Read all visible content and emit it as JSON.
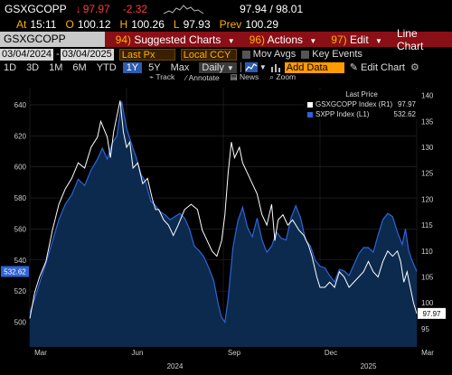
{
  "quote": {
    "ticker": "GSXGCOPP",
    "arrow": "↓",
    "last": "97.97",
    "change": "-2.32",
    "bid_ask": "97.94 / 98.01",
    "time_label": "At",
    "time": "15:11",
    "open_label": "O",
    "open": "100.12",
    "high_label": "H",
    "high": "100.26",
    "low_label": "L",
    "low": "97.93",
    "prev_label": "Prev",
    "prev": "100.29"
  },
  "menu": {
    "security": "GSXGCOPP Index",
    "items": [
      {
        "num": "94)",
        "label": "Suggested Charts"
      },
      {
        "num": "96)",
        "label": "Actions"
      },
      {
        "num": "97)",
        "label": "Edit"
      }
    ],
    "chart_type": "Line Chart"
  },
  "controls": {
    "start_date": "03/04/2024",
    "end_date": "03/04/2025",
    "price_field": "Last Px",
    "currency": "Local CCY",
    "mov_avgs": "Mov Avgs",
    "key_events": "Key Events"
  },
  "periods": [
    "1D",
    "3D",
    "1M",
    "6M",
    "YTD",
    "1Y",
    "5Y",
    "Max"
  ],
  "active_period": "1Y",
  "frequency": "Daily",
  "add_data": "Add Data",
  "edit_chart": "Edit Chart",
  "tools": {
    "track": "Track",
    "annotate": "Annotate",
    "news": "News",
    "zoom": "Zoom"
  },
  "colors": {
    "background": "#000000",
    "menu_bar": "#8a0f16",
    "accent_orange": "#ffb000",
    "series_white": "#ffffff",
    "series_blue": "#2f63d6",
    "fill_blue": "#0c2a4e",
    "negative": "#ff3b3b"
  },
  "chart_data": {
    "type": "line",
    "legend_title": "Last Price",
    "legend_position": "top-right",
    "grid": true,
    "x_tick_labels": [
      "Mar",
      "Jun",
      "Sep",
      "Dec",
      "Mar"
    ],
    "x_tick_positions": [
      0.0,
      3.0,
      6.0,
      9.0,
      12.0
    ],
    "year_labels": [
      "2024",
      "2025"
    ],
    "year_positions": [
      4.5,
      10.5
    ],
    "left_axis": {
      "ticks": [
        500,
        520,
        540,
        560,
        580,
        600,
        620,
        640
      ],
      "ylim": [
        484,
        651
      ]
    },
    "right_axis": {
      "ticks": [
        95,
        100,
        105,
        110,
        115,
        120,
        125,
        130,
        135,
        140
      ],
      "ylim": [
        91.5,
        141.5
      ]
    },
    "series": [
      {
        "name": "GSXGCOPP Index (R1)",
        "last_label": "97.97",
        "axis": "right",
        "values": [
          [
            0,
            97
          ],
          [
            0.15,
            102
          ],
          [
            0.3,
            105
          ],
          [
            0.5,
            108
          ],
          [
            0.7,
            114
          ],
          [
            0.9,
            119
          ],
          [
            1.1,
            122
          ],
          [
            1.3,
            124
          ],
          [
            1.5,
            127
          ],
          [
            1.7,
            126
          ],
          [
            1.9,
            130
          ],
          [
            2.1,
            132
          ],
          [
            2.2,
            135
          ],
          [
            2.4,
            132
          ],
          [
            2.5,
            128
          ],
          [
            2.6,
            133
          ],
          [
            2.7,
            136
          ],
          [
            2.8,
            139
          ],
          [
            2.9,
            133
          ],
          [
            3.0,
            130
          ],
          [
            3.1,
            131
          ],
          [
            3.2,
            126
          ],
          [
            3.35,
            127
          ],
          [
            3.5,
            123
          ],
          [
            3.65,
            124
          ],
          [
            3.8,
            120
          ],
          [
            3.9,
            118
          ],
          [
            4.0,
            118
          ],
          [
            4.15,
            116
          ],
          [
            4.3,
            115
          ],
          [
            4.45,
            113
          ],
          [
            4.6,
            115
          ],
          [
            4.8,
            118
          ],
          [
            5.0,
            119
          ],
          [
            5.2,
            118
          ],
          [
            5.35,
            114
          ],
          [
            5.5,
            112
          ],
          [
            5.65,
            110
          ],
          [
            5.8,
            109
          ],
          [
            5.95,
            112
          ],
          [
            6.05,
            117
          ],
          [
            6.15,
            125
          ],
          [
            6.25,
            131
          ],
          [
            6.35,
            128
          ],
          [
            6.5,
            130
          ],
          [
            6.6,
            127
          ],
          [
            6.75,
            125
          ],
          [
            6.9,
            123
          ],
          [
            7.05,
            121
          ],
          [
            7.2,
            117
          ],
          [
            7.35,
            115
          ],
          [
            7.5,
            119
          ],
          [
            7.6,
            112
          ],
          [
            7.7,
            116
          ],
          [
            7.85,
            117
          ],
          [
            8.0,
            115
          ],
          [
            8.15,
            116
          ],
          [
            8.35,
            114
          ],
          [
            8.5,
            113
          ],
          [
            8.65,
            111
          ],
          [
            8.75,
            109
          ],
          [
            8.9,
            105
          ],
          [
            9.0,
            103
          ],
          [
            9.15,
            103
          ],
          [
            9.3,
            104
          ],
          [
            9.45,
            103
          ],
          [
            9.6,
            106
          ],
          [
            9.75,
            105
          ],
          [
            9.9,
            103
          ],
          [
            10.05,
            104
          ],
          [
            10.2,
            105
          ],
          [
            10.35,
            106
          ],
          [
            10.5,
            108
          ],
          [
            10.65,
            106
          ],
          [
            10.8,
            105
          ],
          [
            10.95,
            108
          ],
          [
            11.1,
            110
          ],
          [
            11.25,
            109
          ],
          [
            11.4,
            110
          ],
          [
            11.5,
            108
          ],
          [
            11.6,
            104
          ],
          [
            11.7,
            106
          ],
          [
            11.8,
            103
          ],
          [
            11.9,
            100
          ],
          [
            12.0,
            97.97
          ]
        ]
      },
      {
        "name": "SXPP Index (L1)",
        "last_label": "532.62",
        "axis": "left",
        "values": [
          [
            0,
            506
          ],
          [
            0.15,
            515
          ],
          [
            0.3,
            525
          ],
          [
            0.5,
            538
          ],
          [
            0.7,
            552
          ],
          [
            0.9,
            566
          ],
          [
            1.1,
            576
          ],
          [
            1.3,
            582
          ],
          [
            1.5,
            592
          ],
          [
            1.7,
            588
          ],
          [
            1.9,
            598
          ],
          [
            2.1,
            605
          ],
          [
            2.25,
            612
          ],
          [
            2.4,
            605
          ],
          [
            2.55,
            615
          ],
          [
            2.7,
            620
          ],
          [
            2.85,
            642
          ],
          [
            3.0,
            625
          ],
          [
            3.15,
            615
          ],
          [
            3.3,
            606
          ],
          [
            3.45,
            595
          ],
          [
            3.6,
            590
          ],
          [
            3.75,
            578
          ],
          [
            3.9,
            575
          ],
          [
            4.05,
            571
          ],
          [
            4.2,
            569
          ],
          [
            4.35,
            566
          ],
          [
            4.5,
            568
          ],
          [
            4.65,
            570
          ],
          [
            4.8,
            567
          ],
          [
            4.95,
            560
          ],
          [
            5.1,
            549
          ],
          [
            5.25,
            546
          ],
          [
            5.4,
            542
          ],
          [
            5.55,
            535
          ],
          [
            5.7,
            527
          ],
          [
            5.85,
            511
          ],
          [
            5.95,
            503
          ],
          [
            6.05,
            500
          ],
          [
            6.15,
            515
          ],
          [
            6.3,
            548
          ],
          [
            6.45,
            565
          ],
          [
            6.6,
            574
          ],
          [
            6.75,
            561
          ],
          [
            6.9,
            555
          ],
          [
            7.05,
            567
          ],
          [
            7.2,
            553
          ],
          [
            7.35,
            545
          ],
          [
            7.5,
            549
          ],
          [
            7.65,
            558
          ],
          [
            7.8,
            554
          ],
          [
            7.95,
            553
          ],
          [
            8.1,
            567
          ],
          [
            8.25,
            575
          ],
          [
            8.4,
            567
          ],
          [
            8.55,
            553
          ],
          [
            8.7,
            549
          ],
          [
            8.85,
            540
          ],
          [
            9.0,
            536
          ],
          [
            9.15,
            535
          ],
          [
            9.3,
            530
          ],
          [
            9.45,
            526
          ],
          [
            9.6,
            534
          ],
          [
            9.75,
            533
          ],
          [
            9.9,
            530
          ],
          [
            10.05,
            537
          ],
          [
            10.2,
            544
          ],
          [
            10.35,
            548
          ],
          [
            10.5,
            548
          ],
          [
            10.65,
            545
          ],
          [
            10.8,
            556
          ],
          [
            10.95,
            566
          ],
          [
            11.1,
            570
          ],
          [
            11.25,
            568
          ],
          [
            11.4,
            558
          ],
          [
            11.55,
            550
          ],
          [
            11.65,
            560
          ],
          [
            11.75,
            546
          ],
          [
            11.85,
            540
          ],
          [
            12.0,
            532.62
          ]
        ]
      }
    ]
  }
}
